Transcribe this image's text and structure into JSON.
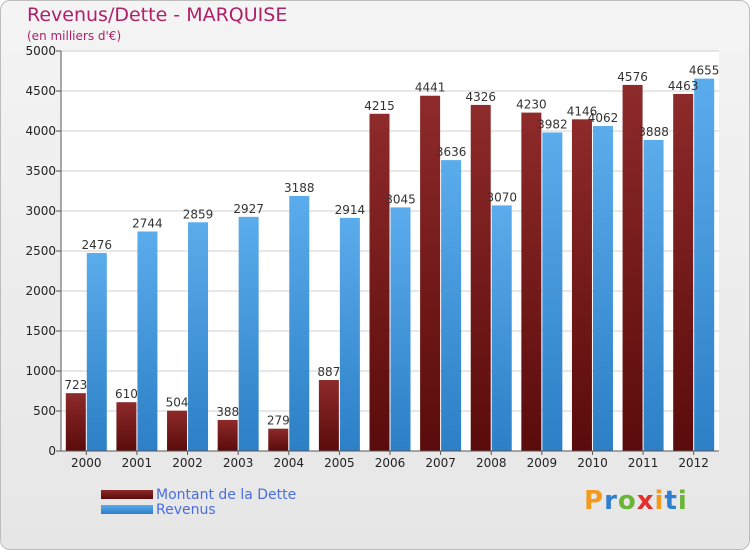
{
  "chart_data": {
    "type": "bar",
    "title": "Revenus/Dette - MARQUISE",
    "subtitle": "(en milliers d'€)",
    "categories": [
      "2000",
      "2001",
      "2002",
      "2003",
      "2004",
      "2005",
      "2006",
      "2007",
      "2008",
      "2009",
      "2010",
      "2011",
      "2012"
    ],
    "series": [
      {
        "name": "Montant de la Dette",
        "color": "#8b1c1c",
        "values": [
          723,
          610,
          504,
          388,
          279,
          887,
          4215,
          4441,
          4326,
          4230,
          4146,
          4576,
          4463
        ]
      },
      {
        "name": "Revenus",
        "color": "#3f9be0",
        "values": [
          2476,
          2744,
          2859,
          2927,
          3188,
          2914,
          3045,
          3636,
          3070,
          3982,
          4062,
          3888,
          4655
        ]
      }
    ],
    "ylim": [
      0,
      5000
    ],
    "yticks": [
      0,
      500,
      1000,
      1500,
      2000,
      2500,
      3000,
      3500,
      4000,
      4500,
      5000
    ],
    "grid": true,
    "legend_position": "bottom-left"
  },
  "logo": {
    "text": "Proxiti",
    "colors": [
      "#f29a1e",
      "#2e7fd0",
      "#6bb536",
      "#e4302c",
      "#f29a1e",
      "#2e7fd0",
      "#6bb536"
    ]
  }
}
